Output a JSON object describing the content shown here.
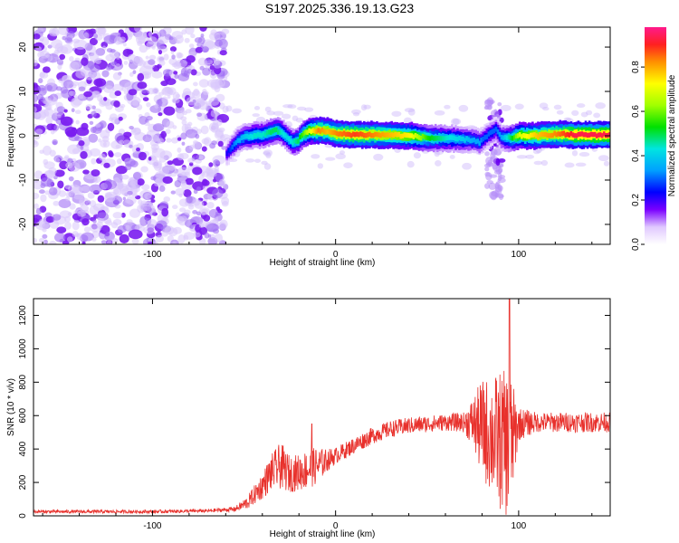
{
  "chart_data": [
    {
      "type": "heatmap",
      "title": "S197.2025.336.19.13.G23",
      "xlabel": "Height of straight line (km)",
      "ylabel": "Frequency (Hz)",
      "xlim": [
        -165,
        150
      ],
      "ylim": [
        -24.5,
        24.5
      ],
      "xticks": [
        -100,
        0,
        100
      ],
      "yticks": [
        -20,
        -10,
        0,
        10,
        20
      ],
      "colorbar": {
        "label": "Normalized spectral amplitude",
        "range": [
          0,
          0.98
        ],
        "ticks": [
          "0.0",
          "0.2",
          "0.4",
          "0.6",
          "0.8"
        ],
        "tick_values": [
          0.0,
          0.2,
          0.4,
          0.6,
          0.8
        ]
      },
      "noise_region": {
        "x_start": -165,
        "x_end": -60,
        "amplitude": 0.08
      },
      "ridge": {
        "x": [
          -60,
          -57,
          -54,
          -50,
          -45,
          -40,
          -36,
          -33,
          -30,
          -27,
          -24,
          -21,
          -18,
          -15,
          -10,
          -5,
          0,
          10,
          20,
          30,
          40,
          50,
          60,
          70,
          75,
          78,
          80,
          84,
          87,
          90,
          95,
          100,
          110,
          120,
          130,
          140,
          150
        ],
        "freq": [
          -4,
          -2.5,
          -1,
          -0.2,
          0,
          0.3,
          0.8,
          1.2,
          0.8,
          -0.5,
          -1.5,
          -1,
          0.5,
          1,
          1.2,
          1,
          0.4,
          0.3,
          0.2,
          0.2,
          0,
          -0.5,
          -0.6,
          -0.8,
          -1,
          -1.5,
          -0.8,
          0.5,
          1.5,
          -0.5,
          -0.5,
          0,
          0,
          0.4,
          0.2,
          0.2,
          0.2
        ],
        "amplitude": [
          0.22,
          0.3,
          0.35,
          0.4,
          0.45,
          0.45,
          0.5,
          0.5,
          0.45,
          0.42,
          0.45,
          0.5,
          0.6,
          0.7,
          0.85,
          0.8,
          0.85,
          0.9,
          0.85,
          0.8,
          0.75,
          0.55,
          0.45,
          0.4,
          0.35,
          0.35,
          0.3,
          0.3,
          0.3,
          0.35,
          0.5,
          0.7,
          0.8,
          0.85,
          0.95,
          0.95,
          0.95
        ]
      }
    },
    {
      "type": "line",
      "xlabel": "Height of straight line (km)",
      "ylabel": "SNR (10 * v/v)",
      "xlim": [
        -165,
        150
      ],
      "ylim": [
        0,
        1300
      ],
      "xticks": [
        -100,
        0,
        100
      ],
      "yticks": [
        0,
        200,
        400,
        600,
        800,
        1000,
        1200
      ],
      "series": [
        {
          "name": "SNR",
          "color": "#e8312c",
          "envelope_x": [
            -165,
            -140,
            -100,
            -70,
            -55,
            -48,
            -40,
            -35,
            -30,
            -25,
            -20,
            -15,
            -10,
            -5,
            0,
            10,
            20,
            30,
            40,
            50,
            60,
            70,
            75,
            80,
            85,
            90,
            95,
            100,
            110,
            120,
            130,
            140,
            150
          ],
          "envelope_y": [
            25,
            25,
            25,
            30,
            40,
            80,
            180,
            260,
            300,
            250,
            260,
            280,
            300,
            330,
            360,
            420,
            480,
            520,
            540,
            550,
            560,
            560,
            560,
            520,
            480,
            450,
            420,
            550,
            560,
            560,
            560,
            560,
            560
          ],
          "noise": [
            10,
            10,
            10,
            10,
            15,
            40,
            80,
            110,
            140,
            110,
            110,
            120,
            110,
            70,
            50,
            50,
            50,
            50,
            50,
            50,
            50,
            60,
            150,
            300,
            350,
            420,
            450,
            100,
            60,
            60,
            60,
            60,
            60
          ],
          "peak_value": 1300
        }
      ]
    }
  ]
}
